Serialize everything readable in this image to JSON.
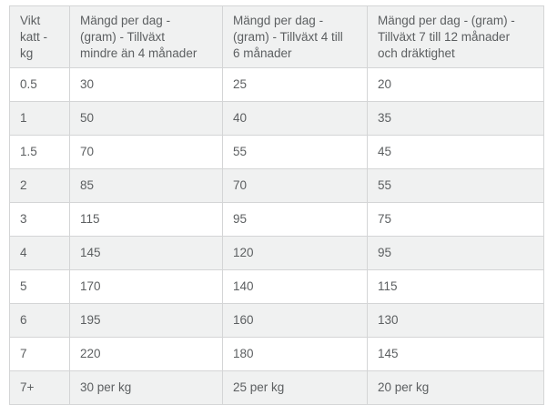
{
  "page": {
    "background": "#ffffff",
    "description": "Feeding amount table for cats (Swedish)"
  },
  "colors": {
    "stripe_background": "#f0f1f1",
    "row_background": "#ffffff",
    "border": "#d4d5d6",
    "text": "#5c5f61"
  },
  "table": {
    "columns": [
      {
        "label": "Vikt katt - kg",
        "lines": [
          "Vikt",
          "katt -",
          "kg"
        ]
      },
      {
        "label": "Mängd per dag - (gram) - Tillväxt mindre än 4 månader",
        "lines": [
          "Mängd per dag -",
          "(gram) - Tillväxt",
          "mindre än 4 månader"
        ]
      },
      {
        "label": "Mängd per dag - (gram) - Tillväxt 4 till 6 månader",
        "lines": [
          "Mängd per dag -",
          "(gram) - Tillväxt 4 till",
          "6 månader"
        ]
      },
      {
        "label": "Mängd per dag - (gram) - Tillväxt 7 till 12 månader och dräktighet",
        "lines": [
          "Mängd per dag - (gram) -",
          "Tillväxt 7 till 12 månader",
          "och dräktighet"
        ]
      }
    ],
    "rows": [
      [
        "0.5",
        "30",
        "25",
        "20"
      ],
      [
        "1",
        "50",
        "40",
        "35"
      ],
      [
        "1.5",
        "70",
        "55",
        "45"
      ],
      [
        "2",
        "85",
        "70",
        "55"
      ],
      [
        "3",
        "115",
        "95",
        "75"
      ],
      [
        "4",
        "145",
        "120",
        "95"
      ],
      [
        "5",
        "170",
        "140",
        "115"
      ],
      [
        "6",
        "195",
        "160",
        "130"
      ],
      [
        "7",
        "220",
        "180",
        "145"
      ],
      [
        "7+",
        "30 per kg",
        "25 per kg",
        "20 per kg"
      ]
    ]
  }
}
